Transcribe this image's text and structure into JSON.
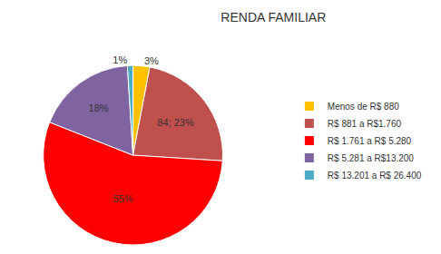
{
  "chart_data": {
    "type": "pie",
    "title": "RENDA FAMILIAR",
    "categories": [
      "Menos de R$ 880",
      "R$ 881 a R$1.760",
      "R$ 1.761 a R$ 5.280",
      "R$ 5.281 a R$13.200",
      "R$ 13.201 a R$ 26.400"
    ],
    "values": [
      3,
      23,
      55,
      18,
      1
    ],
    "value_labels": [
      "3%",
      "84; 23%",
      "55%",
      "18%",
      "1%"
    ],
    "colors": [
      "#ffc000",
      "#c0504d",
      "#ff0000",
      "#8064a2",
      "#4bacc6"
    ],
    "data_labels": true,
    "legend": "right"
  }
}
